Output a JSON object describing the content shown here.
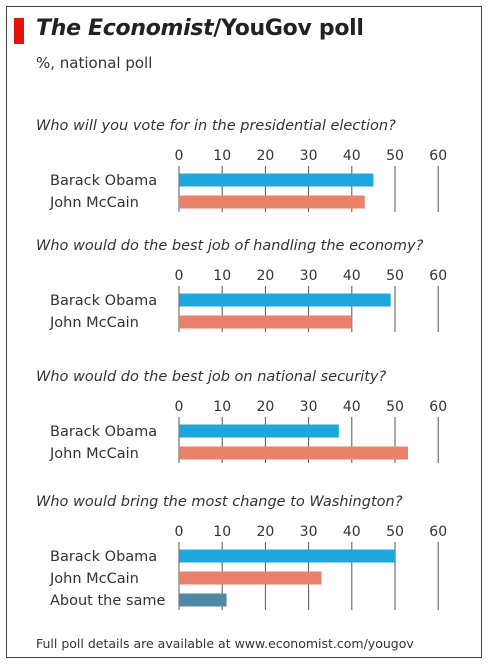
{
  "header": {
    "title_italic": "The Economist",
    "title_rest": "/YouGov poll",
    "subtitle": "%, national poll"
  },
  "footnote": "Full poll details are available at www.economist.com/yougov",
  "colors": {
    "accent_red": "#e3120b",
    "Barack Obama": "#1ea7dc",
    "John McCain": "#e8826a",
    "About the same": "#4f87a6"
  },
  "chart_data": [
    {
      "type": "bar",
      "title": "Who will you vote for in the presidential election?",
      "categories": [
        "Barack Obama",
        "John McCain"
      ],
      "values": [
        45,
        43
      ],
      "xlim": [
        0,
        60
      ],
      "xticks": [
        "0",
        "10",
        "20",
        "30",
        "40",
        "50",
        "60"
      ],
      "grid": true
    },
    {
      "type": "bar",
      "title": "Who would do the best job of handling the economy?",
      "categories": [
        "Barack Obama",
        "John McCain"
      ],
      "values": [
        49,
        40
      ],
      "xlim": [
        0,
        60
      ],
      "xticks": [
        "0",
        "10",
        "20",
        "30",
        "40",
        "50",
        "60"
      ],
      "grid": true
    },
    {
      "type": "bar",
      "title": "Who would do the best job on national security?",
      "categories": [
        "Barack Obama",
        "John McCain"
      ],
      "values": [
        37,
        53
      ],
      "xlim": [
        0,
        60
      ],
      "xticks": [
        "0",
        "10",
        "20",
        "30",
        "40",
        "50",
        "60"
      ],
      "grid": true
    },
    {
      "type": "bar",
      "title": "Who would bring the most change to Washington?",
      "categories": [
        "Barack Obama",
        "John McCain",
        "About the same"
      ],
      "values": [
        50,
        33,
        11
      ],
      "xlim": [
        0,
        60
      ],
      "xticks": [
        "0",
        "10",
        "20",
        "30",
        "40",
        "50",
        "60"
      ],
      "grid": true
    }
  ]
}
